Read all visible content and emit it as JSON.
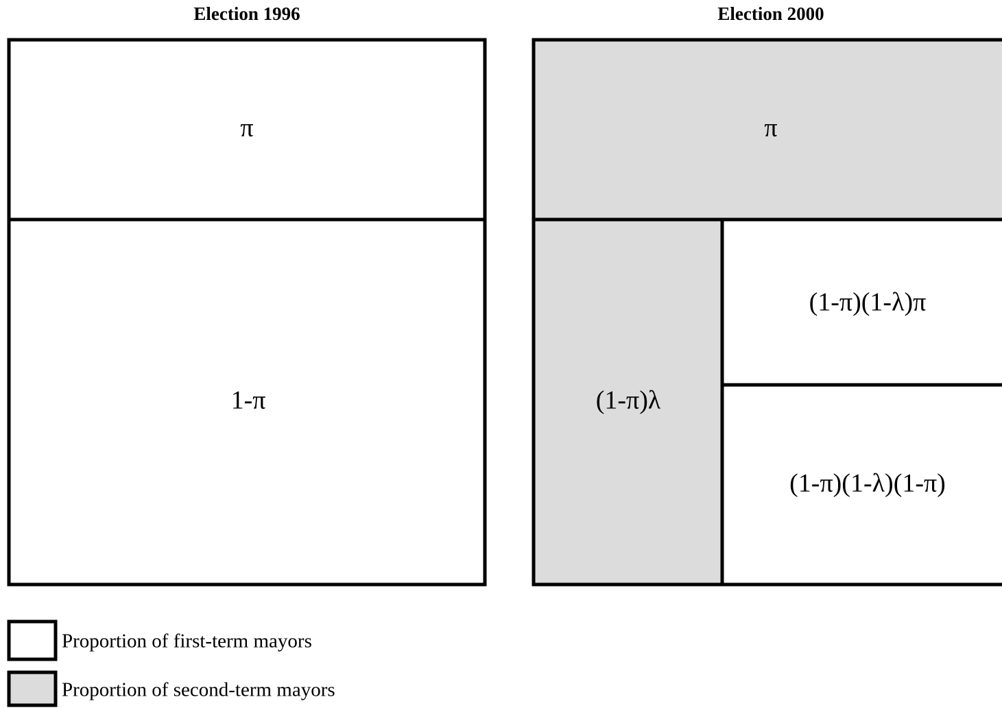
{
  "panels": [
    {
      "title": "Election 1996",
      "cells": [
        "π",
        "1-π"
      ]
    },
    {
      "title": "Election 2000",
      "cells": [
        "π",
        "(1-π)λ",
        "(1-π)(1-λ)π",
        "(1-π)(1-λ)(1-π)"
      ]
    }
  ],
  "legend": [
    "Proportion of first-term mayors",
    "Proportion of second-term mayors"
  ]
}
